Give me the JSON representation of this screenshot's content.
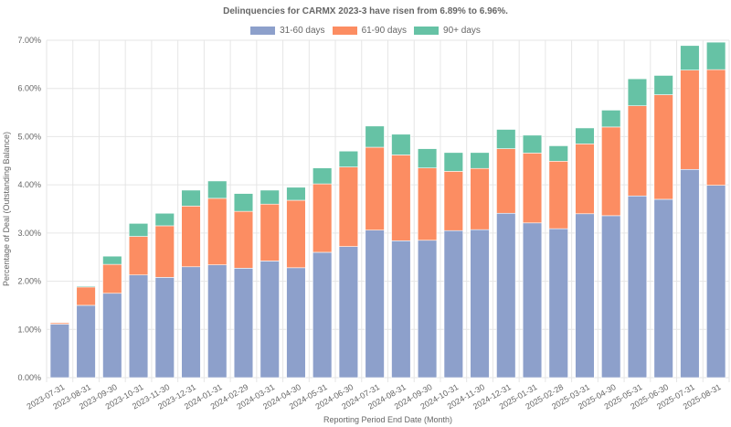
{
  "chart_data": {
    "type": "bar",
    "stacked": true,
    "title": "Delinquencies for CARMX 2023-3 have risen from 6.89% to 6.96%.",
    "xlabel": "Reporting Period End Date (Month)",
    "ylabel": "Percentage of Deal (Outstanding Balance)",
    "ylim": [
      0,
      7
    ],
    "yticks": [
      "0.00%",
      "1.00%",
      "2.00%",
      "3.00%",
      "4.00%",
      "5.00%",
      "6.00%",
      "7.00%"
    ],
    "grid": true,
    "legend_position": "top-center",
    "categories": [
      "2023-07-31",
      "2023-08-31",
      "2023-09-30",
      "2023-10-31",
      "2023-11-30",
      "2023-12-31",
      "2024-01-31",
      "2024-02-29",
      "2024-03-31",
      "2024-04-30",
      "2024-05-31",
      "2024-06-30",
      "2024-07-31",
      "2024-08-31",
      "2024-09-30",
      "2024-10-31",
      "2024-11-30",
      "2024-12-31",
      "2025-01-31",
      "2025-02-28",
      "2025-03-31",
      "2025-04-30",
      "2025-05-31",
      "2025-06-30",
      "2025-07-31",
      "2025-08-31"
    ],
    "series": [
      {
        "name": "31-60 days",
        "color": "#8da0cb",
        "values": [
          1.11,
          1.5,
          1.75,
          2.13,
          2.08,
          2.3,
          2.34,
          2.27,
          2.42,
          2.28,
          2.6,
          2.72,
          3.06,
          2.84,
          2.85,
          3.05,
          3.07,
          3.41,
          3.21,
          3.09,
          3.4,
          3.36,
          3.77,
          3.7,
          4.32,
          3.99
        ]
      },
      {
        "name": "61-90 days",
        "color": "#fc8d62",
        "values": [
          0.03,
          0.38,
          0.6,
          0.8,
          1.07,
          1.26,
          1.38,
          1.18,
          1.18,
          1.4,
          1.42,
          1.65,
          1.72,
          1.78,
          1.5,
          1.23,
          1.27,
          1.34,
          1.45,
          1.4,
          1.45,
          1.84,
          1.87,
          2.17,
          2.06,
          2.4
        ]
      },
      {
        "name": "90+ days",
        "color": "#66c2a5",
        "values": [
          0.01,
          0.02,
          0.17,
          0.27,
          0.26,
          0.33,
          0.36,
          0.37,
          0.29,
          0.27,
          0.33,
          0.33,
          0.44,
          0.43,
          0.4,
          0.39,
          0.33,
          0.4,
          0.37,
          0.32,
          0.33,
          0.35,
          0.56,
          0.4,
          0.51,
          0.57
        ]
      }
    ]
  }
}
